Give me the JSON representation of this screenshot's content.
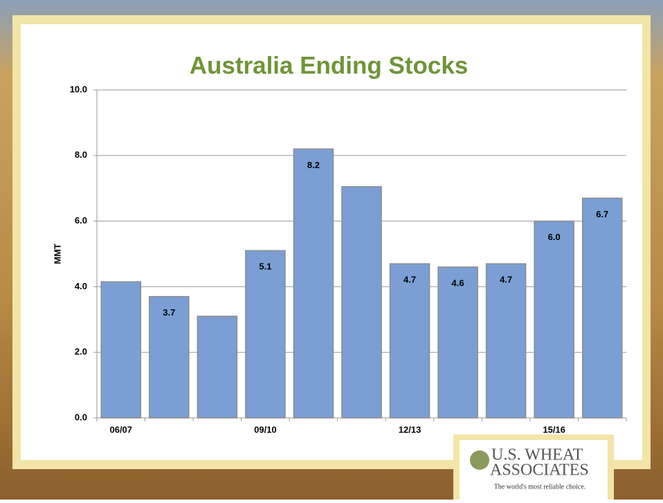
{
  "chart_data": {
    "type": "bar",
    "title": "Australia Ending Stocks",
    "y_label": "MMT",
    "categories": [
      "06/07",
      null,
      null,
      "09/10",
      null,
      null,
      "12/13",
      null,
      null,
      "15/16",
      null
    ],
    "values": [
      4.15,
      3.7,
      3.1,
      5.1,
      8.2,
      7.05,
      4.7,
      4.6,
      4.7,
      6.0,
      6.7
    ],
    "value_labels": [
      null,
      "3.7",
      null,
      "5.1",
      "8.2",
      null,
      "4.7",
      "4.6",
      "4.7",
      "6.0",
      "6.7"
    ],
    "color": "#7b9fd4",
    "ylim": [
      0,
      10
    ],
    "yticks": [
      {
        "value": 0,
        "label": "0.0"
      },
      {
        "value": 2,
        "label": "2.0"
      },
      {
        "value": 4,
        "label": "4.0"
      },
      {
        "value": 6,
        "label": "6.0"
      },
      {
        "value": 8,
        "label": "8.0"
      },
      {
        "value": 10,
        "label": "10.0"
      }
    ],
    "grid": true
  },
  "logo": {
    "line1": "U.S. WHEAT",
    "line2": "ASSOCIATES",
    "tagline": "The world's most reliable choice."
  }
}
